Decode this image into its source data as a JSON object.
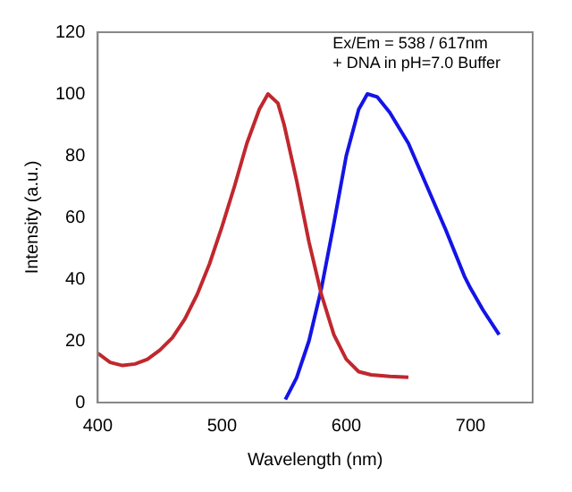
{
  "chart_data": {
    "type": "line",
    "xlabel": "Wavelength (nm)",
    "ylabel": "Intensity (a.u.)",
    "annotations": [
      "Ex/Em = 538 / 617nm",
      "+ DNA in pH=7.0 Buffer"
    ],
    "xlim": [
      400,
      750
    ],
    "xticks": [
      400,
      500,
      600,
      700
    ],
    "ylim": [
      0,
      120
    ],
    "yticks": [
      0,
      20,
      40,
      60,
      80,
      100,
      120
    ],
    "grid": false,
    "legend": false,
    "marker": "none",
    "line_style": "solid",
    "series": [
      {
        "color": "#c0282e",
        "x": [
          400,
          410,
          420,
          430,
          440,
          450,
          460,
          470,
          480,
          490,
          500,
          510,
          520,
          530,
          537,
          545,
          550,
          560,
          570,
          580,
          590,
          600,
          610,
          620,
          635,
          650
        ],
        "values": [
          16,
          13,
          12,
          12.5,
          14,
          17,
          21,
          27,
          35,
          45,
          57,
          70,
          84,
          95,
          100,
          97,
          90,
          72,
          52,
          35,
          22,
          14,
          10,
          9,
          8.5,
          8.2
        ]
      },
      {
        "color": "#1414e6",
        "x": [
          551,
          560,
          570,
          580,
          590,
          600,
          610,
          617,
          625,
          635,
          650,
          665,
          680,
          695,
          700,
          710,
          723
        ],
        "values": [
          1,
          8,
          20,
          37,
          58,
          80,
          95,
          100,
          99,
          94,
          84,
          70,
          56,
          41,
          37,
          30,
          22
        ]
      }
    ]
  }
}
